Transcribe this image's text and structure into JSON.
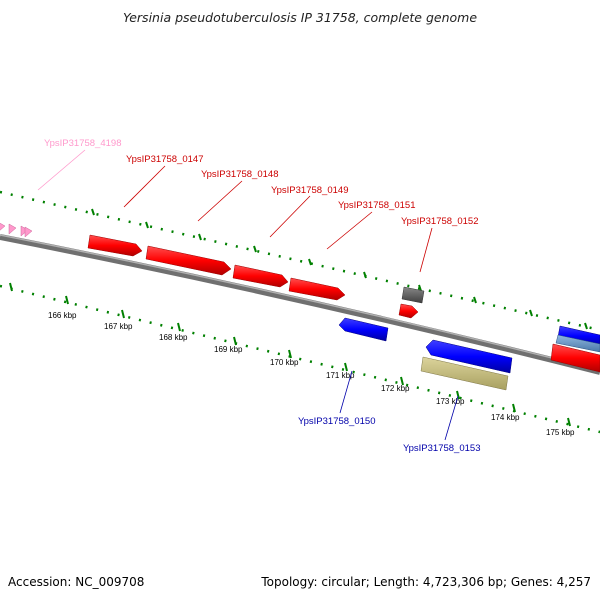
{
  "title": "Yersinia pseudotuberculosis IP 31758, complete genome",
  "footer": {
    "accession": "Accession: NC_009708",
    "summary": "Topology: circular; Length: 4,723,306 bp; Genes: 4,257"
  },
  "colors": {
    "forward_gene": "#ff0000",
    "reverse_gene": "#0000ff",
    "ribbon_gene": "#c8c080",
    "other_feature": "#606060",
    "pink_gene": "#ff99cc",
    "backbone": "#808080",
    "ticks": "#008000"
  },
  "scale": {
    "unit": "kbp",
    "ticks": [
      "166 kbp",
      "167 kbp",
      "168 kbp",
      "169 kbp",
      "170 kbp",
      "171 kbp",
      "172 kbp",
      "173 kbp",
      "174 kbp",
      "175 kbp"
    ]
  },
  "labels": [
    {
      "id": "YpsIP31758_4198",
      "text": "YpsIP31758_4198",
      "color": "#ff99cc"
    },
    {
      "id": "YpsIP31758_0147",
      "text": "YpsIP31758_0147",
      "color": "#cc0000"
    },
    {
      "id": "YpsIP31758_0148",
      "text": "YpsIP31758_0148",
      "color": "#cc0000"
    },
    {
      "id": "YpsIP31758_0149",
      "text": "YpsIP31758_0149",
      "color": "#cc0000"
    },
    {
      "id": "YpsIP31758_0151",
      "text": "YpsIP31758_0151",
      "color": "#cc0000"
    },
    {
      "id": "YpsIP31758_0152",
      "text": "YpsIP31758_0152",
      "color": "#cc0000"
    },
    {
      "id": "YpsIP31758_0150",
      "text": "YpsIP31758_0150",
      "color": "#0000aa"
    },
    {
      "id": "YpsIP31758_0153",
      "text": "YpsIP31758_0153",
      "color": "#0000aa"
    }
  ]
}
